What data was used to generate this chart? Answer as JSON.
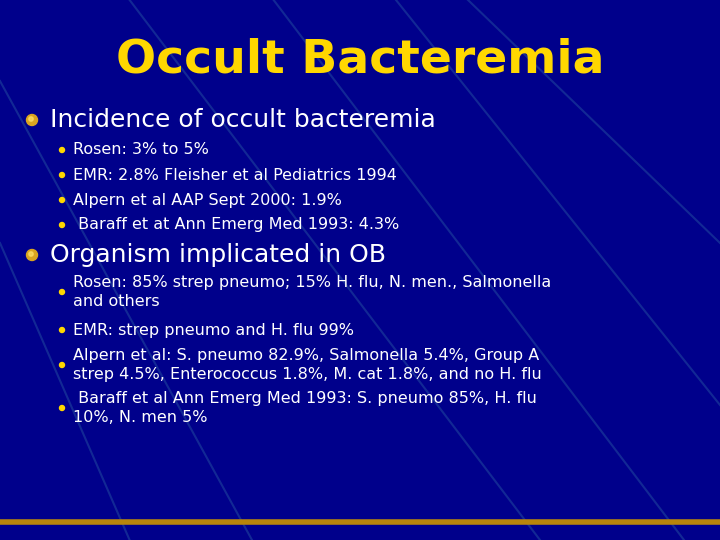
{
  "title": "Occult Bacteremia",
  "title_color": "#FFD700",
  "title_fontsize": 34,
  "background_color": "#00008B",
  "text_color": "#FFFFFF",
  "bullet1_text": "Incidence of occult bacteremia",
  "bullet1_fontsize": 18,
  "sub_bullets1": [
    "Rosen: 3% to 5%",
    "EMR: 2.8% Fleisher et al Pediatrics 1994",
    "Alpern et al AAP Sept 2000: 1.9%",
    " Baraff et at Ann Emerg Med 1993: 4.3%"
  ],
  "bullet2_text": "Organism implicated in OB",
  "bullet2_fontsize": 18,
  "sub_bullets2": [
    "Rosen: 85% strep pneumo; 15% H. flu, N. men., Salmonella\nand others",
    "EMR: strep pneumo and H. flu 99%",
    "Alpern et al: S. pneumo 82.9%, Salmonella 5.4%, Group A\nstrep 4.5%, Enterococcus 1.8%, M. cat 1.8%, and no H. flu",
    " Baraff et al Ann Emerg Med 1993: S. pneumo 85%, H. flu\n10%, N. men 5%"
  ],
  "sub_bullet_fontsize": 11.5,
  "sub_bullet_color": "#FFFFFF",
  "bullet_marker_color": "#DAA520",
  "sub_bullet_marker_color": "#FFD700",
  "line_color": "#B8860B",
  "diag_lines": [
    [
      [
        0.18,
        1.0
      ],
      [
        0.75,
        0.0
      ]
    ],
    [
      [
        0.38,
        1.0
      ],
      [
        0.95,
        0.0
      ]
    ],
    [
      [
        0.55,
        1.0
      ],
      [
        1.0,
        0.25
      ]
    ],
    [
      [
        0.65,
        1.0
      ],
      [
        1.0,
        0.55
      ]
    ],
    [
      [
        0.0,
        0.85
      ],
      [
        0.35,
        0.0
      ]
    ],
    [
      [
        0.0,
        0.55
      ],
      [
        0.18,
        0.0
      ]
    ]
  ]
}
